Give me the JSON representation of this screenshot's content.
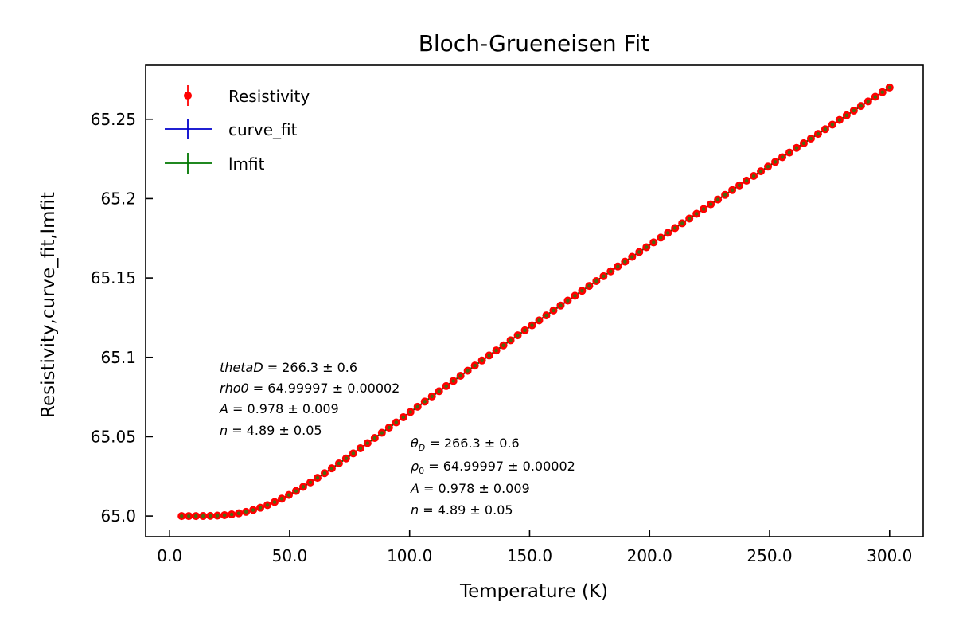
{
  "chart_data": {
    "type": "scatter",
    "title": "Bloch-Grueneisen Fit",
    "xlabel": "Temperature (K)",
    "ylabel": "Resistivity,curve_fit,lmfit",
    "xlim": [
      -10,
      314
    ],
    "ylim": [
      64.987,
      65.284
    ],
    "x_ticks": [
      0,
      50,
      100,
      150,
      200,
      250,
      300
    ],
    "x_tick_labels": [
      "0.0",
      "50.0",
      "100.0",
      "150.0",
      "200.0",
      "250.0",
      "300.0"
    ],
    "y_ticks": [
      65.0,
      65.05,
      65.1,
      65.15,
      65.2,
      65.25
    ],
    "y_tick_labels": [
      "65.0",
      "65.05",
      "65.1",
      "65.15",
      "65.2",
      "65.25"
    ],
    "grid": false,
    "legend_position": "top-left",
    "x_range": [
      5,
      300
    ],
    "n_points": 100,
    "fit_params": {
      "thetaD": 266.3,
      "rho0": 64.99997,
      "A": 0.978,
      "n": 4.89
    },
    "series": [
      {
        "name": "Resistivity",
        "color": "#ff0000",
        "style": "errorbar-markers"
      },
      {
        "name": "curve_fit",
        "color": "#0000cc",
        "style": "line"
      },
      {
        "name": "lmfit",
        "color": "#007700",
        "style": "line"
      }
    ],
    "annotation1": {
      "theta": {
        "sym": "thetaD",
        "val": " = 266.3 ± 0.6"
      },
      "rho": {
        "sym": "rho0",
        "val": " = 64.99997 ± 0.00002"
      },
      "A": {
        "sym": "A",
        "val": " = 0.978 ± 0.009"
      },
      "n": {
        "sym": "n",
        "val": " = 4.89 ± 0.05"
      }
    },
    "annotation2": {
      "theta": {
        "sym": "θ",
        "sub": "D",
        "val": " = 266.3 ± 0.6"
      },
      "rho": {
        "sym": "ρ",
        "sub": "0",
        "val": " = 64.99997 ± 0.00002"
      },
      "A": {
        "sym": "A",
        "val": " = 0.978 ± 0.009"
      },
      "n": {
        "sym": "n",
        "val": " = 4.89 ± 0.05"
      }
    }
  }
}
